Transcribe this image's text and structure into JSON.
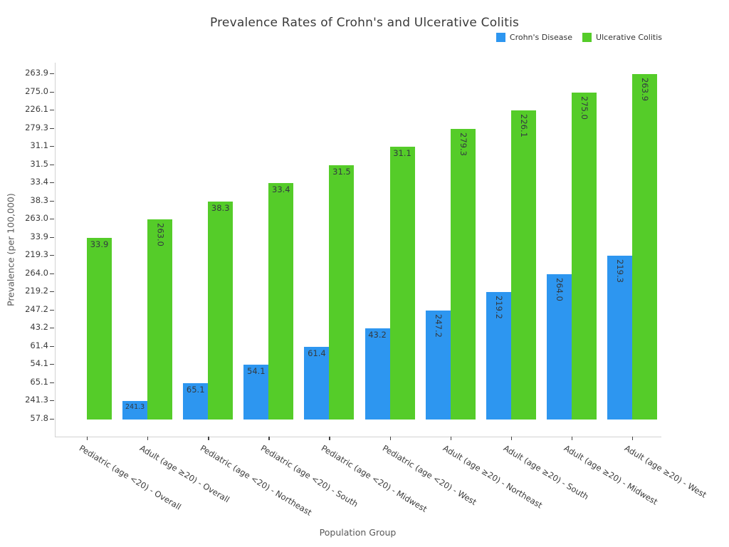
{
  "title": "Prevalence Rates of Crohn's and Ulcerative Colitis",
  "x_axis_label": "Population Group",
  "y_axis_label": "Prevalence (per 100,000)",
  "legend": {
    "items": [
      {
        "label": "Crohn's Disease",
        "color": "#2D96F0"
      },
      {
        "label": "Ulcerative Colitis",
        "color": "#55CC29"
      }
    ]
  },
  "colors": {
    "crohns_blue": "#2D96F0",
    "ulcerative_green": "#55CC29",
    "spine_gray": "#d2d2d2",
    "tick_mark_gray": "#444444",
    "title_text": "#3a3a3a",
    "axis_label_text": "#585858",
    "value_label_text": "#333a40"
  },
  "chart_data": {
    "type": "bar",
    "title": "Prevalence Rates of Crohn's and Ulcerative Colitis",
    "xlabel": "Population Group",
    "ylabel": "Prevalence (per 100,000)",
    "legend_position": "top-right",
    "grid": false,
    "categories": [
      "Pediatric (age <20) - Overall",
      "Adult (age ≥20) - Overall",
      "Pediatric (age <20) - Northeast",
      "Pediatric (age <20) - South",
      "Pediatric (age <20) - Midwest",
      "Pediatric (age <20) - West",
      "Adult (age ≥20) - Northeast",
      "Adult (age ≥20) - South",
      "Adult (age ≥20) - Midwest",
      "Adult (age ≥20) - West"
    ],
    "series": [
      {
        "name": "Crohn's Disease",
        "color": "#2D96F0",
        "values": [
          57.8,
          241.3,
          65.1,
          54.1,
          61.4,
          43.2,
          247.2,
          219.2,
          264.0,
          219.3
        ]
      },
      {
        "name": "Ulcerative Colitis",
        "color": "#55CC29",
        "values": [
          33.9,
          263.0,
          38.3,
          33.4,
          31.5,
          31.1,
          279.3,
          226.1,
          275.0,
          263.9
        ]
      }
    ],
    "bar_value_labels_shown": true,
    "y_axis_note": "ordinal y-axis: each tick label is one bar's value; every bar's top aligns with the tick bearing its own value; bottom tick 57.8 yields a zero-height bar with no label",
    "y_tick_labels_top_to_bottom": [
      "263.9",
      "275.0",
      "226.1",
      "279.3",
      "31.1",
      "31.5",
      "33.4",
      "38.3",
      "263.0",
      "33.9",
      "219.3",
      "264.0",
      "219.2",
      "247.2",
      "43.2",
      "61.4",
      "54.1",
      "65.1",
      "241.3",
      "57.8"
    ]
  }
}
